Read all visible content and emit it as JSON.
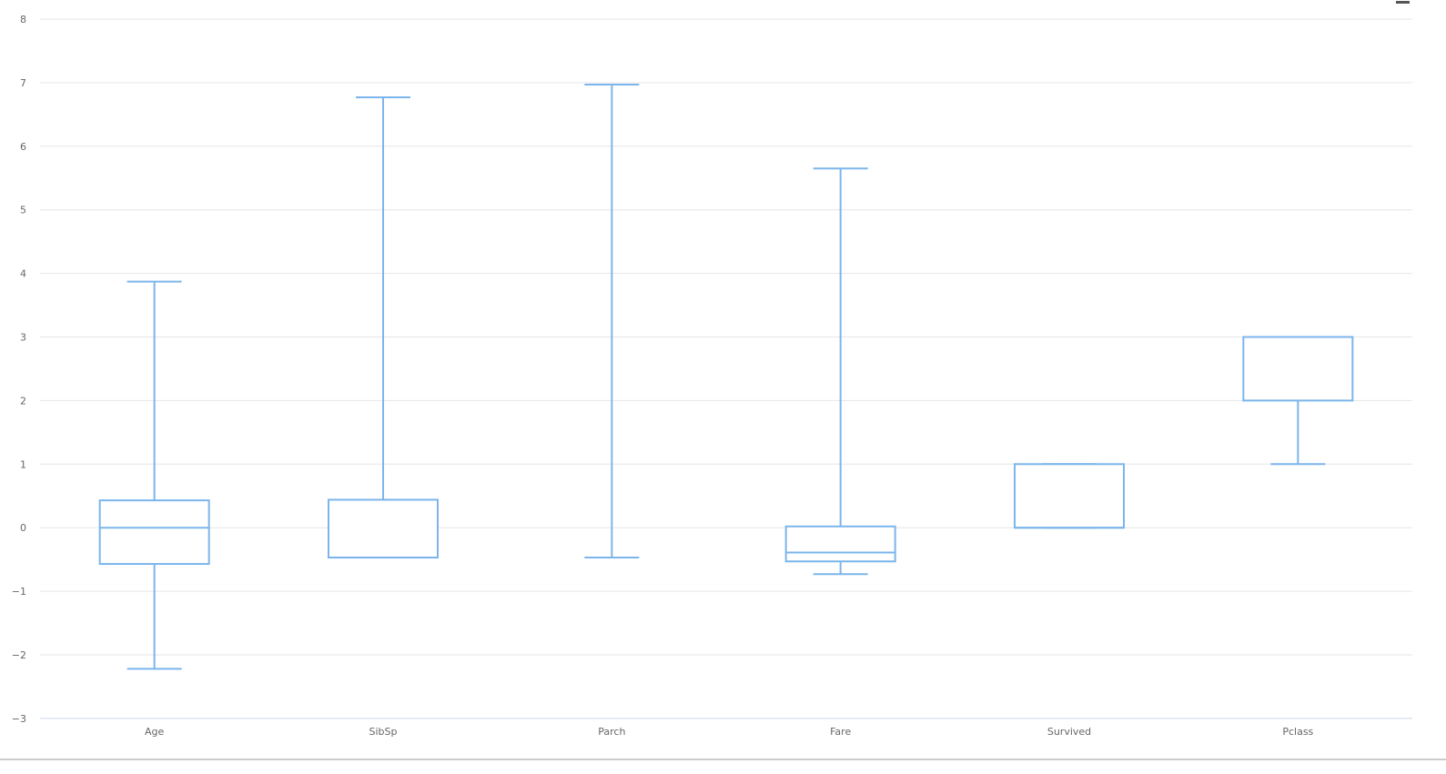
{
  "chart_data": {
    "type": "boxplot",
    "title": "",
    "xlabel": "",
    "ylabel": "",
    "ylim": [
      -3,
      8
    ],
    "yticks": [
      "8",
      "7",
      "6",
      "5",
      "4",
      "3",
      "2",
      "1",
      "0",
      "−1",
      "−2",
      "−3"
    ],
    "ytick_values": [
      8,
      7,
      6,
      5,
      4,
      3,
      2,
      1,
      0,
      -1,
      -2,
      -3
    ],
    "grid": true,
    "legend": "none",
    "categories": [
      "Age",
      "SibSp",
      "Parch",
      "Fare",
      "Survived",
      "Pclass"
    ],
    "boxes": [
      {
        "category": "Age",
        "low": -2.22,
        "q1": -0.57,
        "median": 0.0,
        "q3": 0.43,
        "high": 3.87
      },
      {
        "category": "SibSp",
        "low": -0.47,
        "q1": -0.47,
        "median": -0.47,
        "q3": 0.44,
        "high": 6.77
      },
      {
        "category": "Parch",
        "low": -0.47,
        "q1": -0.47,
        "median": -0.47,
        "q3": -0.47,
        "high": 6.97
      },
      {
        "category": "Fare",
        "low": -0.73,
        "q1": -0.53,
        "median": -0.39,
        "q3": 0.02,
        "high": 5.65
      },
      {
        "category": "Survived",
        "low": 0,
        "q1": 0,
        "median": 0,
        "q3": 1,
        "high": 1
      },
      {
        "category": "Pclass",
        "low": 1,
        "q1": 2,
        "median": 3,
        "q3": 3,
        "high": 3
      }
    ]
  },
  "colors": {
    "series": "#7cb5ec",
    "grid": "#e6e6e6",
    "axis_line": "#ccd6eb",
    "tick_label": "#666666"
  },
  "toolbar": {
    "menu_icon": "hamburger-menu-icon"
  }
}
